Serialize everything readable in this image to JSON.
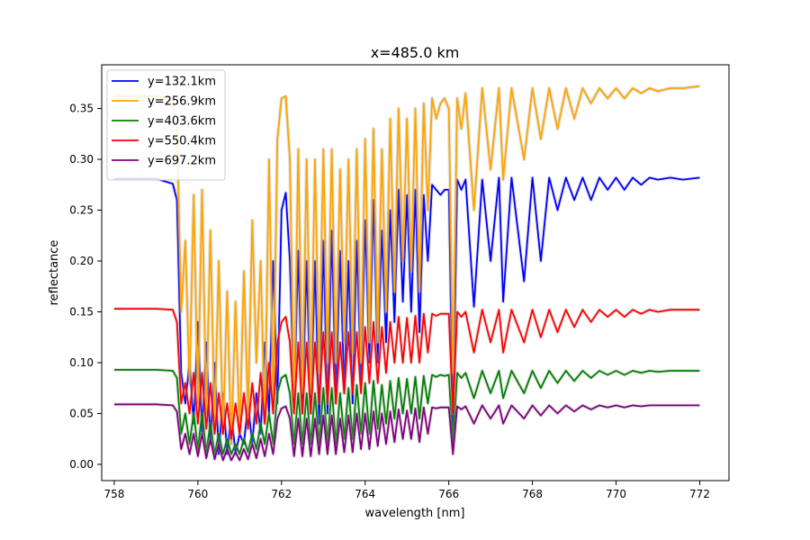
{
  "chart_data": {
    "type": "line",
    "title": "x=485.0 km",
    "xlabel": "wavelength [nm]",
    "ylabel": "reflectance",
    "xlim": [
      757.7,
      772.7
    ],
    "ylim": [
      -0.016,
      0.393
    ],
    "xticks": [
      758,
      760,
      762,
      764,
      766,
      768,
      770,
      772
    ],
    "xtick_labels": [
      "758",
      "760",
      "762",
      "764",
      "766",
      "768",
      "770",
      "772"
    ],
    "yticks": [
      0.0,
      0.05,
      0.1,
      0.15,
      0.2,
      0.25,
      0.3,
      0.35
    ],
    "ytick_labels": [
      "0.00",
      "0.05",
      "0.10",
      "0.15",
      "0.20",
      "0.25",
      "0.30",
      "0.35"
    ],
    "grid": false,
    "legend_position": "top-left",
    "x": [
      758.0,
      759.0,
      759.4,
      759.5,
      759.6,
      759.7,
      759.8,
      759.9,
      760.0,
      760.1,
      760.2,
      760.3,
      760.4,
      760.5,
      760.6,
      760.7,
      760.8,
      760.9,
      761.0,
      761.1,
      761.2,
      761.3,
      761.4,
      761.5,
      761.6,
      761.7,
      761.8,
      761.9,
      762.0,
      762.1,
      762.2,
      762.3,
      762.4,
      762.5,
      762.6,
      762.7,
      762.8,
      762.9,
      763.0,
      763.1,
      763.2,
      763.3,
      763.4,
      763.5,
      763.6,
      763.7,
      763.8,
      763.9,
      764.0,
      764.1,
      764.2,
      764.3,
      764.4,
      764.5,
      764.6,
      764.7,
      764.8,
      764.9,
      765.0,
      765.1,
      765.2,
      765.3,
      765.4,
      765.5,
      765.6,
      765.7,
      765.8,
      765.9,
      766.0,
      766.1,
      766.2,
      766.3,
      766.4,
      766.6,
      766.8,
      767.0,
      767.2,
      767.3,
      767.5,
      767.8,
      768.0,
      768.2,
      768.4,
      768.6,
      768.8,
      769.0,
      769.2,
      769.4,
      769.6,
      769.8,
      770.0,
      770.2,
      770.4,
      770.6,
      770.8,
      771.0,
      771.3,
      771.6,
      772.0
    ],
    "series": [
      {
        "name": "y=132.1km",
        "color": "#0000ff",
        "values": [
          0.281,
          0.281,
          0.276,
          0.26,
          0.09,
          0.06,
          0.1,
          0.04,
          0.14,
          0.03,
          0.12,
          0.02,
          0.1,
          0.01,
          0.07,
          0.01,
          0.05,
          0.01,
          0.03,
          0.02,
          0.06,
          0.02,
          0.07,
          0.03,
          0.12,
          0.05,
          0.2,
          0.06,
          0.25,
          0.267,
          0.2,
          0.06,
          0.21,
          0.05,
          0.2,
          0.05,
          0.2,
          0.04,
          0.22,
          0.05,
          0.23,
          0.06,
          0.21,
          0.07,
          0.2,
          0.06,
          0.22,
          0.08,
          0.24,
          0.1,
          0.26,
          0.1,
          0.23,
          0.12,
          0.25,
          0.14,
          0.27,
          0.16,
          0.265,
          0.15,
          0.27,
          0.13,
          0.265,
          0.2,
          0.275,
          0.27,
          0.265,
          0.27,
          0.27,
          0.03,
          0.28,
          0.27,
          0.28,
          0.155,
          0.28,
          0.2,
          0.282,
          0.16,
          0.282,
          0.18,
          0.282,
          0.2,
          0.282,
          0.25,
          0.282,
          0.26,
          0.282,
          0.26,
          0.282,
          0.27,
          0.282,
          0.27,
          0.282,
          0.275,
          0.282,
          0.28,
          0.282,
          0.28,
          0.282
        ]
      },
      {
        "name": "y=256.9km",
        "color": "#ffa500",
        "values": [
          0.362,
          0.362,
          0.358,
          0.33,
          0.15,
          0.22,
          0.08,
          0.265,
          0.06,
          0.27,
          0.05,
          0.23,
          0.04,
          0.2,
          0.03,
          0.17,
          0.02,
          0.16,
          0.03,
          0.19,
          0.05,
          0.24,
          0.1,
          0.2,
          0.04,
          0.3,
          0.06,
          0.32,
          0.36,
          0.362,
          0.3,
          0.06,
          0.31,
          0.07,
          0.3,
          0.07,
          0.3,
          0.09,
          0.31,
          0.1,
          0.31,
          0.1,
          0.29,
          0.12,
          0.3,
          0.11,
          0.31,
          0.1,
          0.32,
          0.12,
          0.33,
          0.12,
          0.31,
          0.15,
          0.34,
          0.17,
          0.35,
          0.2,
          0.34,
          0.19,
          0.35,
          0.17,
          0.355,
          0.25,
          0.36,
          0.34,
          0.355,
          0.36,
          0.35,
          0.09,
          0.36,
          0.33,
          0.365,
          0.25,
          0.37,
          0.29,
          0.37,
          0.28,
          0.37,
          0.3,
          0.37,
          0.32,
          0.37,
          0.33,
          0.37,
          0.34,
          0.37,
          0.355,
          0.37,
          0.36,
          0.37,
          0.36,
          0.37,
          0.365,
          0.37,
          0.367,
          0.37,
          0.37,
          0.372
        ]
      },
      {
        "name": "y=403.6km",
        "color": "#008000",
        "values": [
          0.093,
          0.093,
          0.092,
          0.085,
          0.03,
          0.05,
          0.02,
          0.05,
          0.015,
          0.05,
          0.012,
          0.04,
          0.01,
          0.03,
          0.01,
          0.025,
          0.01,
          0.02,
          0.01,
          0.025,
          0.012,
          0.03,
          0.015,
          0.04,
          0.02,
          0.05,
          0.02,
          0.07,
          0.085,
          0.088,
          0.07,
          0.02,
          0.07,
          0.02,
          0.07,
          0.02,
          0.07,
          0.02,
          0.075,
          0.02,
          0.075,
          0.02,
          0.07,
          0.025,
          0.075,
          0.025,
          0.078,
          0.03,
          0.08,
          0.03,
          0.082,
          0.035,
          0.078,
          0.04,
          0.082,
          0.045,
          0.085,
          0.05,
          0.084,
          0.05,
          0.086,
          0.045,
          0.087,
          0.06,
          0.088,
          0.086,
          0.088,
          0.087,
          0.088,
          0.02,
          0.09,
          0.085,
          0.09,
          0.065,
          0.092,
          0.07,
          0.092,
          0.065,
          0.092,
          0.07,
          0.092,
          0.075,
          0.092,
          0.08,
          0.092,
          0.082,
          0.092,
          0.085,
          0.092,
          0.088,
          0.092,
          0.088,
          0.092,
          0.09,
          0.092,
          0.091,
          0.092,
          0.092,
          0.092
        ]
      },
      {
        "name": "y=550.4km",
        "color": "#ff0000",
        "values": [
          0.153,
          0.153,
          0.152,
          0.14,
          0.06,
          0.08,
          0.05,
          0.09,
          0.04,
          0.09,
          0.035,
          0.08,
          0.03,
          0.07,
          0.03,
          0.06,
          0.025,
          0.06,
          0.03,
          0.07,
          0.035,
          0.08,
          0.04,
          0.09,
          0.04,
          0.1,
          0.05,
          0.12,
          0.14,
          0.145,
          0.12,
          0.05,
          0.12,
          0.05,
          0.12,
          0.05,
          0.12,
          0.06,
          0.13,
          0.06,
          0.13,
          0.06,
          0.12,
          0.07,
          0.13,
          0.07,
          0.13,
          0.07,
          0.135,
          0.08,
          0.14,
          0.08,
          0.135,
          0.09,
          0.14,
          0.1,
          0.145,
          0.1,
          0.144,
          0.1,
          0.146,
          0.1,
          0.148,
          0.11,
          0.148,
          0.146,
          0.148,
          0.148,
          0.148,
          0.05,
          0.15,
          0.145,
          0.15,
          0.11,
          0.152,
          0.12,
          0.152,
          0.11,
          0.152,
          0.12,
          0.152,
          0.125,
          0.152,
          0.13,
          0.152,
          0.135,
          0.152,
          0.14,
          0.152,
          0.145,
          0.152,
          0.145,
          0.152,
          0.148,
          0.152,
          0.15,
          0.152,
          0.152,
          0.152
        ]
      },
      {
        "name": "y=697.2km",
        "color": "#800080",
        "values": [
          0.059,
          0.059,
          0.058,
          0.052,
          0.015,
          0.03,
          0.01,
          0.03,
          0.008,
          0.03,
          0.006,
          0.025,
          0.005,
          0.02,
          0.004,
          0.015,
          0.004,
          0.012,
          0.004,
          0.015,
          0.005,
          0.02,
          0.006,
          0.025,
          0.008,
          0.03,
          0.01,
          0.045,
          0.055,
          0.057,
          0.045,
          0.008,
          0.045,
          0.008,
          0.045,
          0.008,
          0.045,
          0.01,
          0.048,
          0.01,
          0.048,
          0.01,
          0.045,
          0.012,
          0.048,
          0.012,
          0.05,
          0.015,
          0.05,
          0.015,
          0.052,
          0.018,
          0.05,
          0.02,
          0.052,
          0.022,
          0.054,
          0.025,
          0.053,
          0.025,
          0.055,
          0.022,
          0.056,
          0.03,
          0.056,
          0.055,
          0.056,
          0.056,
          0.056,
          0.01,
          0.057,
          0.054,
          0.057,
          0.04,
          0.058,
          0.045,
          0.058,
          0.04,
          0.058,
          0.045,
          0.058,
          0.048,
          0.058,
          0.05,
          0.058,
          0.052,
          0.058,
          0.054,
          0.058,
          0.056,
          0.058,
          0.056,
          0.058,
          0.057,
          0.058,
          0.058,
          0.058,
          0.058,
          0.058
        ]
      }
    ]
  }
}
